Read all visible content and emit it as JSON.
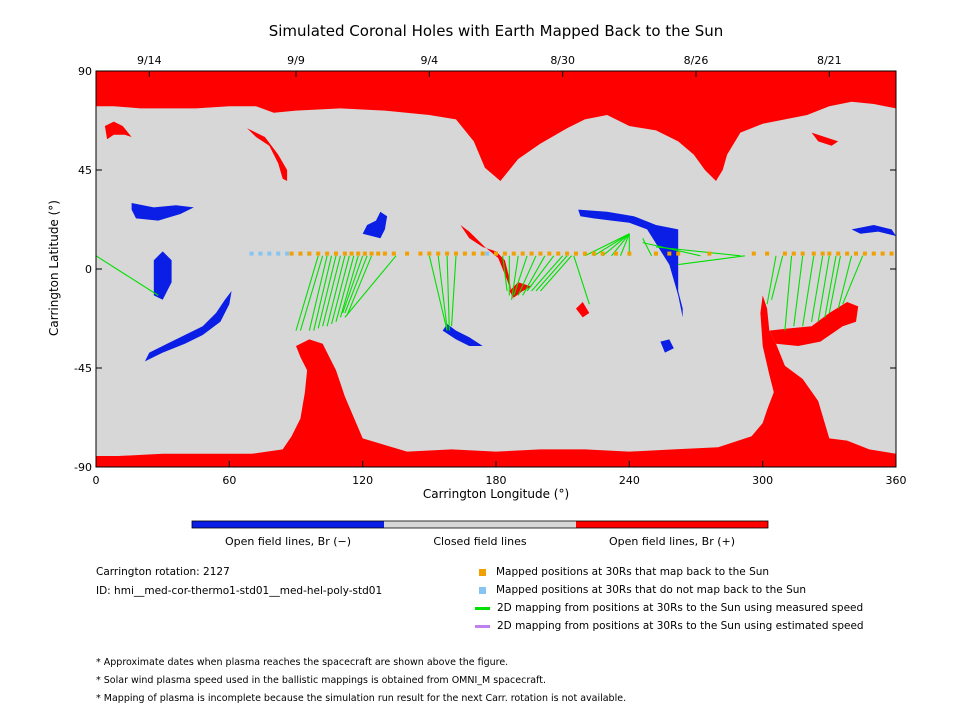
{
  "chart_data": {
    "type": "map",
    "title": "Simulated Coronal Holes with Earth Mapped Back to the Sun",
    "xlabel": "Carrington Longitude (°)",
    "ylabel": "Carrington Latitude (°)",
    "xlim": [
      0,
      360
    ],
    "ylim": [
      -90,
      90
    ],
    "xticks": [
      0,
      60,
      120,
      180,
      240,
      300,
      360
    ],
    "yticks": [
      90,
      45,
      0,
      -45,
      -90
    ],
    "top_date_ticks": [
      {
        "lon": 24,
        "label": "9/14"
      },
      {
        "lon": 90,
        "label": "9/9"
      },
      {
        "lon": 150,
        "label": "9/4"
      },
      {
        "lon": 210,
        "label": "8/30"
      },
      {
        "lon": 270,
        "label": "8/26"
      },
      {
        "lon": 330,
        "label": "8/21"
      }
    ],
    "colorbar": [
      {
        "label": "Open field lines, Br (−)",
        "color": "#0a1ee6"
      },
      {
        "label": "Closed field lines",
        "color": "#d7d7d7"
      },
      {
        "label": "Open field lines, Br (+)",
        "color": "#ff0000"
      }
    ],
    "colors": {
      "closed": "#d7d7d7",
      "open_pos": "#ff0000",
      "open_neg": "#0a1ee6",
      "mapped": "#f0a000",
      "unmapped": "#86c4f2",
      "measured": "#00e000",
      "estimated": "#c080f0"
    },
    "red_regions": [
      [
        [
          0,
          90
        ],
        [
          360,
          90
        ],
        [
          360,
          73
        ],
        [
          350,
          75
        ],
        [
          340,
          76
        ],
        [
          330,
          74
        ],
        [
          320,
          70
        ],
        [
          310,
          68
        ],
        [
          300,
          66
        ],
        [
          290,
          62
        ],
        [
          284,
          52
        ],
        [
          282,
          45
        ],
        [
          279,
          40
        ],
        [
          274,
          45
        ],
        [
          269,
          52
        ],
        [
          262,
          58
        ],
        [
          252,
          63
        ],
        [
          240,
          65
        ],
        [
          230,
          70
        ],
        [
          220,
          68
        ],
        [
          212,
          64
        ],
        [
          200,
          57
        ],
        [
          190,
          50
        ],
        [
          182,
          40
        ],
        [
          175,
          46
        ],
        [
          170,
          58
        ],
        [
          162,
          68
        ],
        [
          150,
          70
        ],
        [
          130,
          72
        ],
        [
          110,
          73
        ],
        [
          90,
          72
        ],
        [
          80,
          71
        ],
        [
          72,
          74
        ],
        [
          60,
          74
        ],
        [
          45,
          73
        ],
        [
          30,
          73
        ],
        [
          20,
          73
        ],
        [
          8,
          74
        ],
        [
          0,
          74
        ]
      ],
      [
        [
          0,
          -90
        ],
        [
          360,
          -90
        ],
        [
          360,
          -84
        ],
        [
          348,
          -82
        ],
        [
          338,
          -78
        ],
        [
          330,
          -77
        ],
        [
          325,
          -60
        ],
        [
          318,
          -50
        ],
        [
          310,
          -44
        ],
        [
          306,
          -34
        ],
        [
          303,
          -28
        ],
        [
          302,
          -18
        ],
        [
          300,
          -12
        ],
        [
          299,
          -20
        ],
        [
          300,
          -35
        ],
        [
          303,
          -48
        ],
        [
          305,
          -56
        ],
        [
          302,
          -64
        ],
        [
          300,
          -70
        ],
        [
          295,
          -76
        ],
        [
          280,
          -81
        ],
        [
          260,
          -82
        ],
        [
          240,
          -83
        ],
        [
          220,
          -82
        ],
        [
          200,
          -82
        ],
        [
          180,
          -83
        ],
        [
          160,
          -82
        ],
        [
          140,
          -83
        ],
        [
          120,
          -77
        ],
        [
          112,
          -58
        ],
        [
          108,
          -46
        ],
        [
          104,
          -38
        ],
        [
          102,
          -34
        ],
        [
          96,
          -32
        ],
        [
          90,
          -35
        ],
        [
          92,
          -40
        ],
        [
          95,
          -46
        ],
        [
          94,
          -56
        ],
        [
          92,
          -68
        ],
        [
          88,
          -76
        ],
        [
          84,
          -82
        ],
        [
          70,
          -84
        ],
        [
          50,
          -84
        ],
        [
          30,
          -84
        ],
        [
          10,
          -85
        ],
        [
          0,
          -85
        ]
      ],
      [
        [
          303,
          -28
        ],
        [
          312,
          -27
        ],
        [
          322,
          -26
        ],
        [
          330,
          -20
        ],
        [
          338,
          -15
        ],
        [
          343,
          -17
        ],
        [
          342,
          -24
        ],
        [
          336,
          -26
        ],
        [
          326,
          -33
        ],
        [
          316,
          -35
        ],
        [
          306,
          -34
        ]
      ],
      [
        [
          4,
          65
        ],
        [
          8,
          67
        ],
        [
          12,
          65
        ],
        [
          16,
          60
        ],
        [
          13,
          61
        ],
        [
          8,
          61
        ],
        [
          5,
          59
        ]
      ],
      [
        [
          68,
          64
        ],
        [
          72,
          60
        ],
        [
          78,
          56
        ],
        [
          82,
          48
        ],
        [
          84,
          41
        ],
        [
          86,
          40
        ],
        [
          86,
          45
        ],
        [
          82,
          52
        ],
        [
          76,
          60
        ]
      ],
      [
        [
          164,
          20
        ],
        [
          168,
          14
        ],
        [
          174,
          10
        ],
        [
          180,
          8
        ],
        [
          184,
          4
        ],
        [
          186,
          -4
        ],
        [
          187,
          -12
        ],
        [
          188,
          -14
        ],
        [
          185,
          -5
        ],
        [
          181,
          5
        ],
        [
          175,
          10
        ],
        [
          168,
          17
        ]
      ],
      [
        [
          196,
          -8
        ],
        [
          192,
          -10
        ],
        [
          188,
          -13
        ],
        [
          186,
          -10
        ],
        [
          190,
          -6
        ]
      ],
      [
        [
          216,
          -18
        ],
        [
          219,
          -15
        ],
        [
          222,
          -20
        ],
        [
          219,
          -22
        ]
      ],
      [
        [
          322,
          62
        ],
        [
          328,
          60
        ],
        [
          334,
          58
        ],
        [
          331,
          56
        ],
        [
          325,
          58
        ]
      ]
    ],
    "blue_regions": [
      [
        [
          16,
          30
        ],
        [
          26,
          28
        ],
        [
          36,
          29
        ],
        [
          44,
          28
        ],
        [
          38,
          25
        ],
        [
          28,
          22
        ],
        [
          18,
          23
        ],
        [
          16,
          27
        ]
      ],
      [
        [
          26,
          4
        ],
        [
          30,
          8
        ],
        [
          34,
          4
        ],
        [
          34,
          -6
        ],
        [
          30,
          -14
        ],
        [
          26,
          -12
        ]
      ],
      [
        [
          22,
          -42
        ],
        [
          30,
          -38
        ],
        [
          40,
          -34
        ],
        [
          48,
          -30
        ],
        [
          56,
          -24
        ],
        [
          60,
          -16
        ],
        [
          61,
          -10
        ],
        [
          58,
          -14
        ],
        [
          54,
          -20
        ],
        [
          48,
          -26
        ],
        [
          40,
          -30
        ],
        [
          32,
          -34
        ],
        [
          24,
          -38
        ]
      ],
      [
        [
          120,
          16
        ],
        [
          128,
          14
        ],
        [
          130,
          18
        ],
        [
          131,
          24
        ],
        [
          128,
          26
        ],
        [
          126,
          22
        ],
        [
          122,
          20
        ]
      ],
      [
        [
          156,
          -28
        ],
        [
          162,
          -32
        ],
        [
          168,
          -35
        ],
        [
          174,
          -35
        ],
        [
          168,
          -31
        ],
        [
          162,
          -28
        ],
        [
          158,
          -25
        ]
      ],
      [
        [
          217,
          27
        ],
        [
          230,
          26
        ],
        [
          242,
          24
        ],
        [
          252,
          20
        ],
        [
          262,
          18
        ],
        [
          262,
          10
        ],
        [
          262,
          0
        ],
        [
          262,
          -10
        ],
        [
          264,
          -18
        ],
        [
          264,
          -22
        ],
        [
          262,
          -12
        ],
        [
          258,
          2
        ],
        [
          253,
          10
        ],
        [
          248,
          18
        ],
        [
          240,
          21
        ],
        [
          232,
          22
        ],
        [
          224,
          23
        ],
        [
          218,
          24
        ]
      ],
      [
        [
          254,
          -33
        ],
        [
          258,
          -32
        ],
        [
          260,
          -36
        ],
        [
          256,
          -38
        ]
      ],
      [
        [
          340,
          18
        ],
        [
          350,
          20
        ],
        [
          358,
          18
        ],
        [
          360,
          15
        ],
        [
          352,
          17
        ],
        [
          344,
          16
        ]
      ]
    ],
    "measured_lines": [
      [
        [
          0,
          6
        ],
        [
          28,
          -12
        ]
      ],
      [
        [
          100,
          6
        ],
        [
          90,
          -28
        ]
      ],
      [
        [
          102,
          6
        ],
        [
          92,
          -28
        ]
      ],
      [
        [
          104,
          6
        ],
        [
          96,
          -28
        ]
      ],
      [
        [
          106,
          6
        ],
        [
          98,
          -28
        ]
      ],
      [
        [
          108,
          6
        ],
        [
          100,
          -27
        ]
      ],
      [
        [
          110,
          6
        ],
        [
          102,
          -26
        ]
      ],
      [
        [
          112,
          6
        ],
        [
          104,
          -26
        ]
      ],
      [
        [
          114,
          6
        ],
        [
          106,
          -25
        ]
      ],
      [
        [
          116,
          6
        ],
        [
          108,
          -24
        ]
      ],
      [
        [
          118,
          6
        ],
        [
          110,
          -22
        ]
      ],
      [
        [
          120,
          6
        ],
        [
          111,
          -20
        ]
      ],
      [
        [
          122,
          6
        ],
        [
          112,
          -20
        ]
      ],
      [
        [
          124,
          6
        ],
        [
          113,
          -21
        ]
      ],
      [
        [
          135,
          6
        ],
        [
          112,
          -22
        ]
      ],
      [
        [
          150,
          6
        ],
        [
          158,
          -28
        ]
      ],
      [
        [
          154,
          6
        ],
        [
          158,
          -27
        ]
      ],
      [
        [
          158,
          6
        ],
        [
          159,
          -28
        ]
      ],
      [
        [
          162,
          6
        ],
        [
          160,
          -26
        ]
      ],
      [
        [
          183,
          6
        ],
        [
          185,
          -10
        ]
      ],
      [
        [
          186,
          6
        ],
        [
          186,
          -12
        ]
      ],
      [
        [
          190,
          6
        ],
        [
          187,
          -14
        ]
      ],
      [
        [
          194,
          6
        ],
        [
          188,
          -12
        ]
      ],
      [
        [
          198,
          6
        ],
        [
          190,
          -12
        ]
      ],
      [
        [
          202,
          6
        ],
        [
          192,
          -12
        ]
      ],
      [
        [
          206,
          6
        ],
        [
          194,
          -10
        ]
      ],
      [
        [
          210,
          6
        ],
        [
          196,
          -10
        ]
      ],
      [
        [
          212,
          6
        ],
        [
          198,
          -10
        ]
      ],
      [
        [
          214,
          6
        ],
        [
          200,
          -10
        ]
      ],
      [
        [
          215,
          6
        ],
        [
          222,
          -16
        ]
      ],
      [
        [
          220,
          6
        ],
        [
          240,
          16
        ]
      ],
      [
        [
          224,
          6
        ],
        [
          240,
          16
        ]
      ],
      [
        [
          228,
          6
        ],
        [
          240,
          16
        ]
      ],
      [
        [
          232,
          6
        ],
        [
          240,
          16
        ]
      ],
      [
        [
          236,
          6
        ],
        [
          240,
          16
        ]
      ],
      [
        [
          240,
          6
        ],
        [
          240,
          16
        ]
      ],
      [
        [
          250,
          6
        ],
        [
          246,
          14
        ]
      ],
      [
        [
          262,
          2
        ],
        [
          292,
          6
        ]
      ],
      [
        [
          272,
          6
        ],
        [
          246,
          12
        ]
      ],
      [
        [
          290,
          6
        ],
        [
          252,
          10
        ]
      ],
      [
        [
          306,
          6
        ],
        [
          302,
          -16
        ]
      ],
      [
        [
          309,
          6
        ],
        [
          304,
          -14
        ]
      ],
      [
        [
          313,
          6
        ],
        [
          310,
          -28
        ]
      ],
      [
        [
          318,
          6
        ],
        [
          314,
          -26
        ]
      ],
      [
        [
          323,
          6
        ],
        [
          318,
          -26
        ]
      ],
      [
        [
          327,
          6
        ],
        [
          322,
          -24
        ]
      ],
      [
        [
          330,
          6
        ],
        [
          325,
          -24
        ]
      ],
      [
        [
          333,
          6
        ],
        [
          328,
          -22
        ]
      ],
      [
        [
          335,
          6
        ],
        [
          330,
          -20
        ]
      ],
      [
        [
          340,
          6
        ],
        [
          334,
          -18
        ]
      ],
      [
        [
          345,
          6
        ],
        [
          336,
          -16
        ]
      ]
    ],
    "mapped_points_lon": [
      88,
      92,
      96,
      100,
      104,
      108,
      112,
      115,
      118,
      121,
      124,
      127,
      130,
      134,
      140,
      146,
      150,
      154,
      158,
      162,
      166,
      170,
      174,
      180,
      184,
      188,
      192,
      196,
      200,
      204,
      208,
      212,
      216,
      220,
      224,
      228,
      234,
      240,
      252,
      258,
      262,
      276,
      296,
      302,
      310,
      314,
      318,
      323,
      327,
      330,
      334,
      338,
      342,
      346,
      350,
      354,
      358
    ],
    "mapped_points_lat": 7,
    "unmapped_points_lon": [
      70,
      74,
      78,
      82,
      86,
      92,
      96,
      176,
      180
    ],
    "unmapped_points_lat": 7
  },
  "info": {
    "rotation": "Carrington rotation: 2127",
    "id": "ID: hmi__med-cor-thermo1-std01__med-hel-poly-std01"
  },
  "legend": {
    "mapped": "Mapped positions at 30Rs that map back to the Sun",
    "unmapped": "Mapped positions at 30Rs that do not map back to the Sun",
    "measured": "2D mapping from positions at 30Rs to the Sun using measured speed",
    "estimated": "2D mapping from positions at 30Rs to the Sun using estimated speed"
  },
  "notes": [
    "* Approximate dates when plasma reaches the spacecraft are shown above the figure.",
    "* Solar wind plasma speed used in the ballistic mappings is obtained from OMNI_M spacecraft.",
    "* Mapping of plasma is incomplete because the simulation run result for the next Carr. rotation is not available."
  ]
}
